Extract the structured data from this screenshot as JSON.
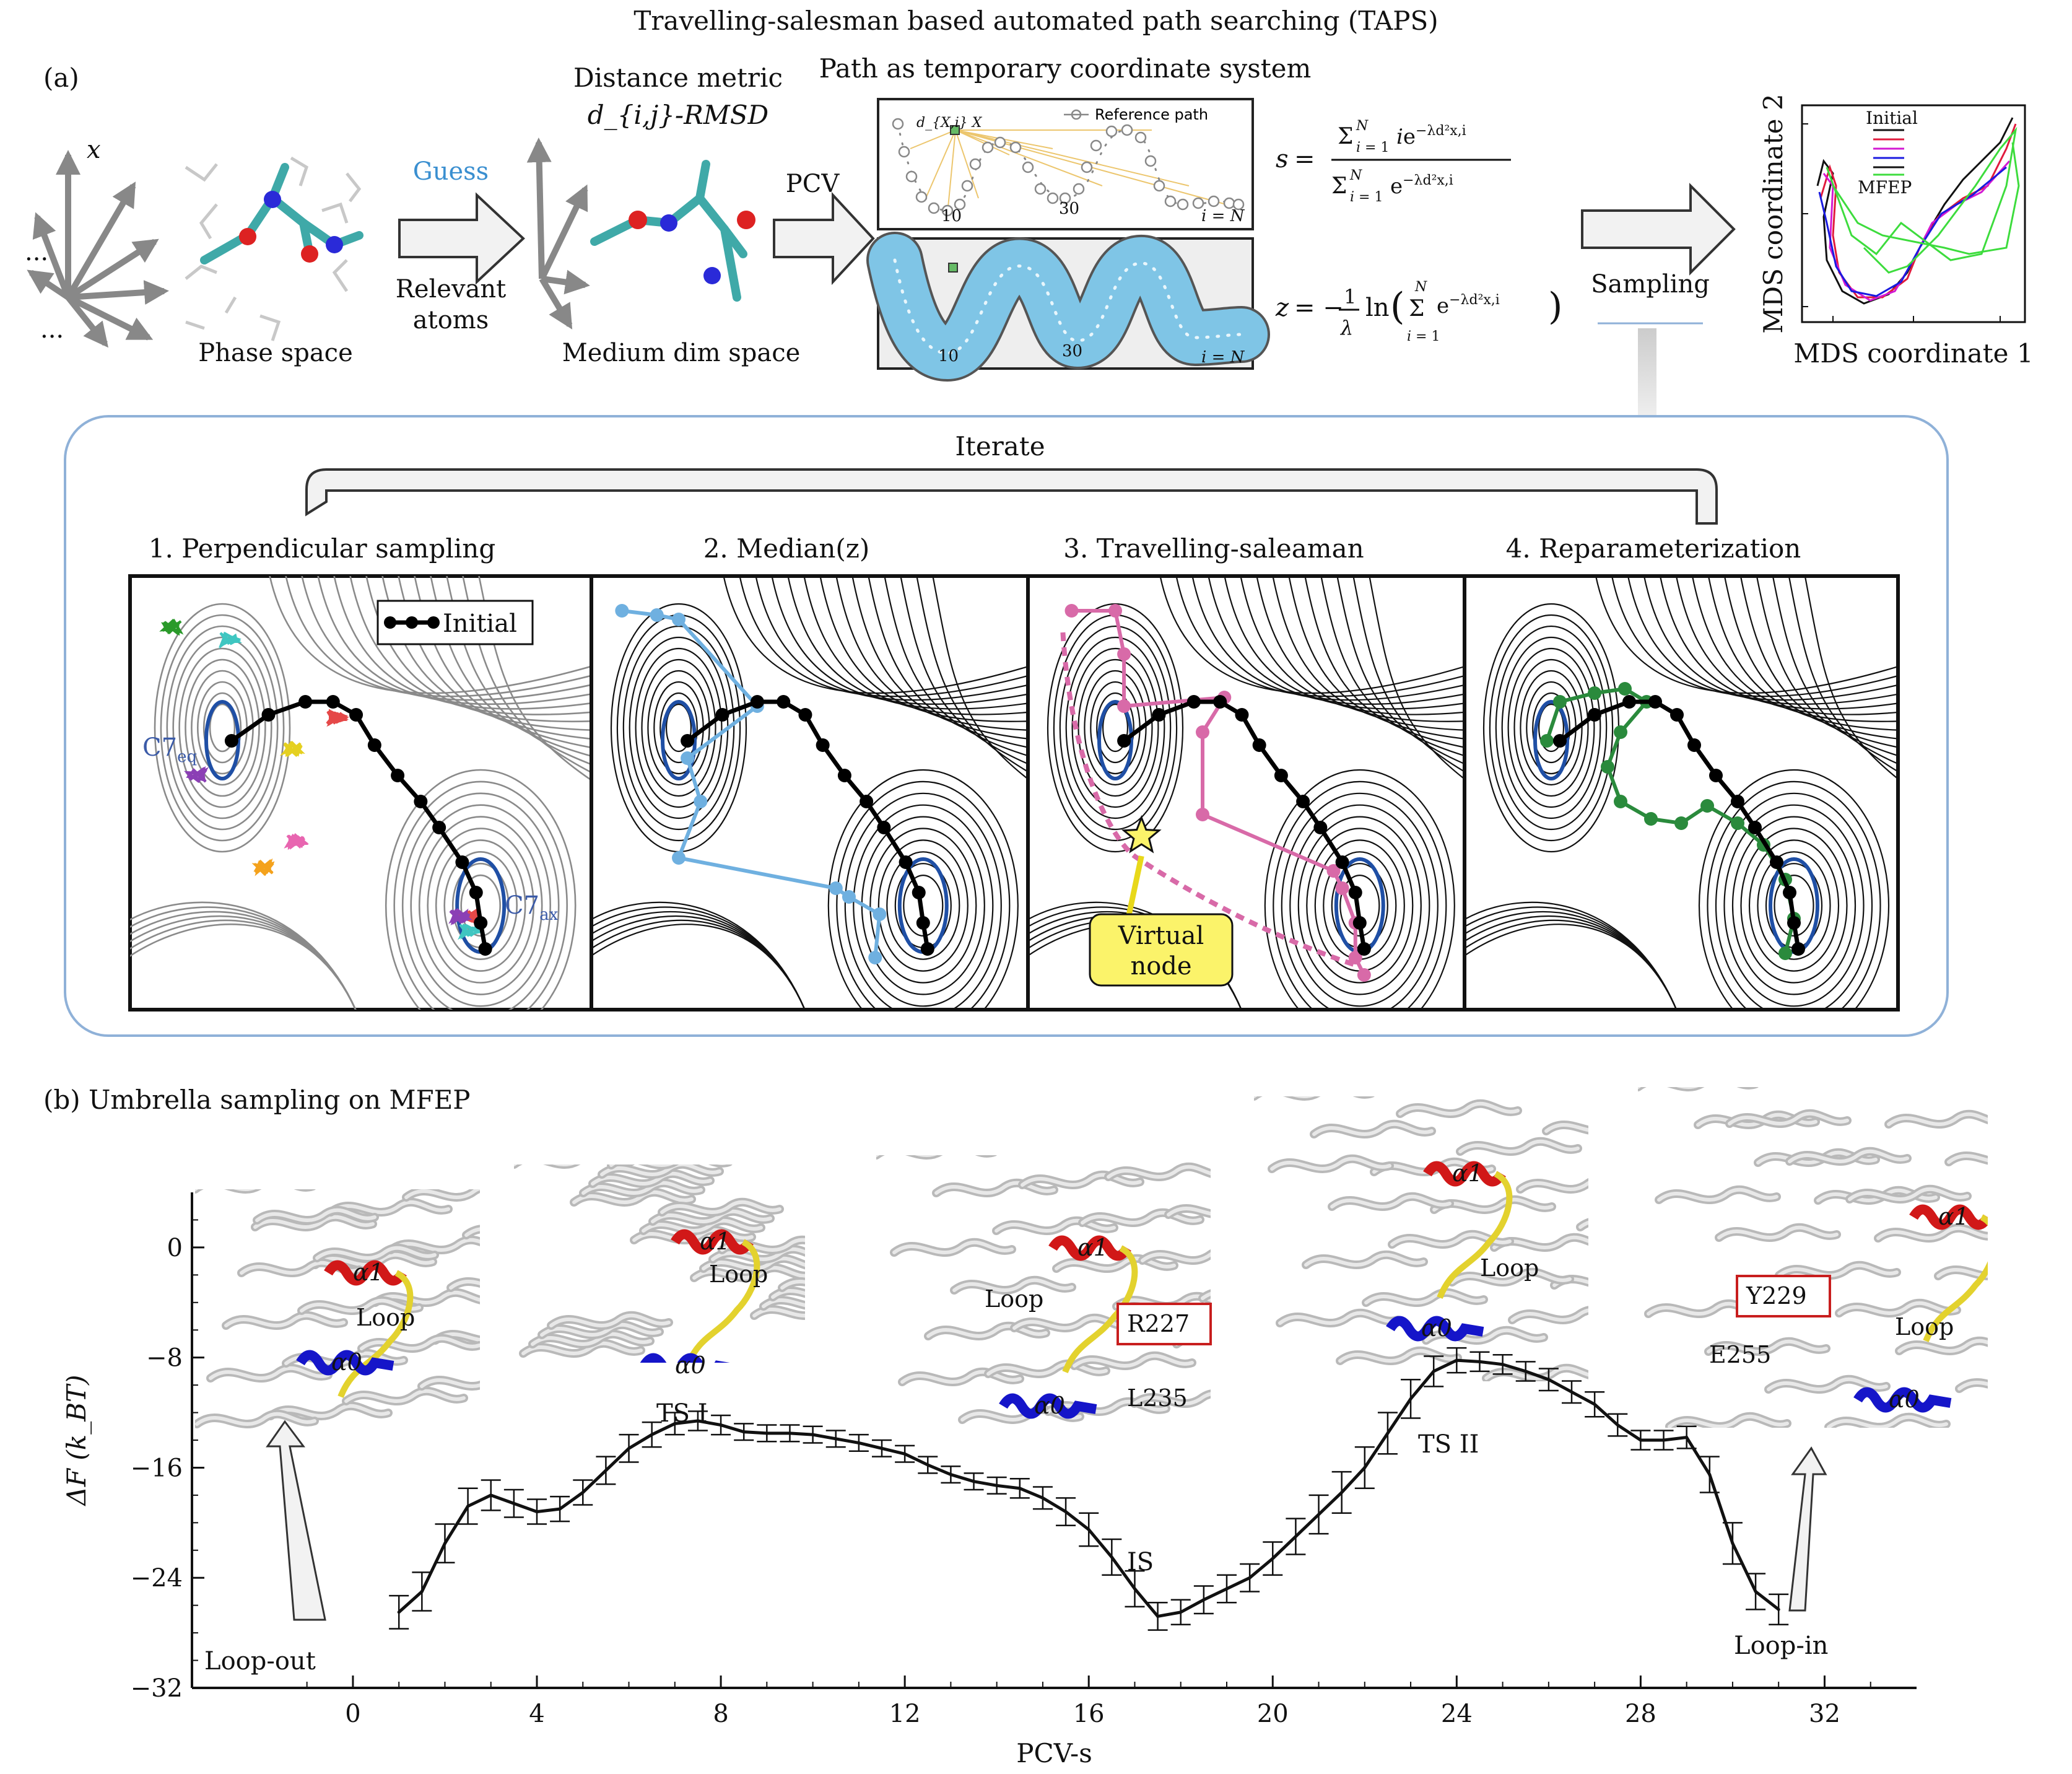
{
  "header": {
    "main_title": "Travelling-salesman based automated path searching (TAPS)",
    "part_a": "(a)",
    "part_b": "(b) Umbrella sampling on MFEP"
  },
  "panel_a": {
    "axes_x_label": "x",
    "dots": "...",
    "phase_space": "Phase space",
    "guess": "Guess",
    "relevant_atoms_1": "Relevant",
    "relevant_atoms_2": "atoms",
    "distance_metric_1": "Distance metric",
    "distance_metric_2": "d_{i,j}-RMSD",
    "medium_dim_space": "Medium dim space",
    "pcv": "PCV",
    "path_title": "Path as temporary coordinate system",
    "reference_path": "Reference path",
    "dx_label": "d_{X,i} X",
    "node_10": "10",
    "node_30": "30",
    "node_N": "i = N",
    "eq_s": "s = Σ i e^{−λd²x,i} / Σ e^{−λd²x,i}",
    "eq_z": "z = −(1/λ) ln( Σ e^{−λd²x,i} )",
    "sampling": "Sampling",
    "mds_y": "MDS coordinate 2",
    "mds_x": "MDS coordinate 1",
    "legend_initial": "Initial",
    "legend_mfep": "MFEP",
    "iterate": "Iterate",
    "steps": [
      {
        "label": "1. Perpendicular sampling"
      },
      {
        "label": "2. Median(z)"
      },
      {
        "label": "3. Travelling-saleaman"
      },
      {
        "label": "4. Reparameterization"
      }
    ],
    "initial_legend": "Initial",
    "c7eq": "C7",
    "c7eq_sub": "eq",
    "c7ax": "C7",
    "c7ax_sub": "ax",
    "virtual_node_1": "Virtual",
    "virtual_node_2": "node"
  },
  "panel_b": {
    "annotations": {
      "loop_out": "Loop-out",
      "ts1": "TS I",
      "is": "IS",
      "ts2": "TS II",
      "loop_in": "Loop-in"
    },
    "insets": {
      "a1": "α1",
      "a0": "α0",
      "loop": "Loop",
      "r227": "R227",
      "l235": "L235",
      "y229": "Y229",
      "e255": "E255"
    }
  },
  "chart_data": {
    "type": "line",
    "xlabel": "PCV-s",
    "ylabel": "ΔF (k_BT)",
    "xlim": [
      -3.5,
      34
    ],
    "ylim": [
      -32,
      4
    ],
    "xticks": [
      0,
      4,
      8,
      12,
      16,
      20,
      24,
      28,
      32
    ],
    "yticks": [
      0,
      -8,
      -16,
      -24,
      -32
    ],
    "xtick_labels": [
      "0",
      "4",
      "8",
      "12",
      "16",
      "20",
      "24",
      "28",
      "32"
    ],
    "ytick_labels": [
      "0",
      "−8",
      "−16",
      "−24",
      "−32"
    ],
    "series": [
      {
        "x": [
          1.0,
          1.5,
          2.0,
          2.5,
          3.0,
          3.5,
          4.0,
          4.5,
          5.0,
          5.5,
          6.0,
          6.5,
          7.0,
          7.5,
          8.0,
          8.5,
          9.0,
          9.5,
          10.0,
          10.5,
          11.0,
          11.5,
          12.0,
          12.5,
          13.0,
          13.5,
          14.0,
          14.5,
          15.0,
          15.5,
          16.0,
          16.5,
          17.0,
          17.5,
          18.0,
          18.5,
          19.0,
          19.5,
          20.0,
          20.5,
          21.0,
          21.5,
          22.0,
          22.5,
          23.0,
          23.5,
          24.0,
          24.5,
          25.0,
          25.5,
          26.0,
          26.5,
          27.0,
          27.5,
          28.0,
          28.5,
          29.0,
          29.5,
          30.0,
          30.5,
          31.0
        ],
        "y": [
          -26.5,
          -25.0,
          -21.5,
          -18.8,
          -18.0,
          -18.6,
          -19.2,
          -19.0,
          -17.8,
          -16.2,
          -14.6,
          -13.6,
          -12.8,
          -12.6,
          -12.9,
          -13.4,
          -13.5,
          -13.5,
          -13.6,
          -13.9,
          -14.2,
          -14.6,
          -15.0,
          -15.8,
          -16.5,
          -17.0,
          -17.3,
          -17.5,
          -18.2,
          -19.2,
          -20.5,
          -22.5,
          -24.8,
          -26.8,
          -26.5,
          -25.6,
          -24.8,
          -24.0,
          -22.6,
          -21.0,
          -19.4,
          -17.8,
          -16.0,
          -13.5,
          -11.0,
          -9.0,
          -8.2,
          -8.3,
          -8.5,
          -9.0,
          -9.6,
          -10.5,
          -11.4,
          -12.9,
          -14.0,
          -14.0,
          -13.8,
          -16.5,
          -21.5,
          -25.0,
          -26.3
        ],
        "errors": [
          1.2,
          1.4,
          1.4,
          1.3,
          1.1,
          1.0,
          0.9,
          0.9,
          0.9,
          1.0,
          1.0,
          0.9,
          0.8,
          0.7,
          0.7,
          0.6,
          0.6,
          0.6,
          0.6,
          0.6,
          0.6,
          0.6,
          0.6,
          0.6,
          0.6,
          0.6,
          0.6,
          0.7,
          0.8,
          1.0,
          1.2,
          1.3,
          1.3,
          1.0,
          0.9,
          1.0,
          1.0,
          1.0,
          1.2,
          1.3,
          1.4,
          1.5,
          1.5,
          1.5,
          1.4,
          1.1,
          0.9,
          0.7,
          0.7,
          0.7,
          0.8,
          0.8,
          0.9,
          0.8,
          0.7,
          0.7,
          0.8,
          1.3,
          1.5,
          1.3,
          1.1
        ]
      }
    ]
  },
  "colors": {
    "initial_path": "#000000",
    "median": "#6fb0e0",
    "ts_path": "#d86aa8",
    "reparam": "#2a8a3c",
    "basin": "#1f4fa5",
    "virtual_node_box": "#fbf36a",
    "guess_text": "#3a8fd0",
    "iterate_border": "#8fb1d8",
    "helix_red": "#d11818",
    "helix_blue": "#1515c9",
    "loop_yellow": "#e3d22e"
  }
}
